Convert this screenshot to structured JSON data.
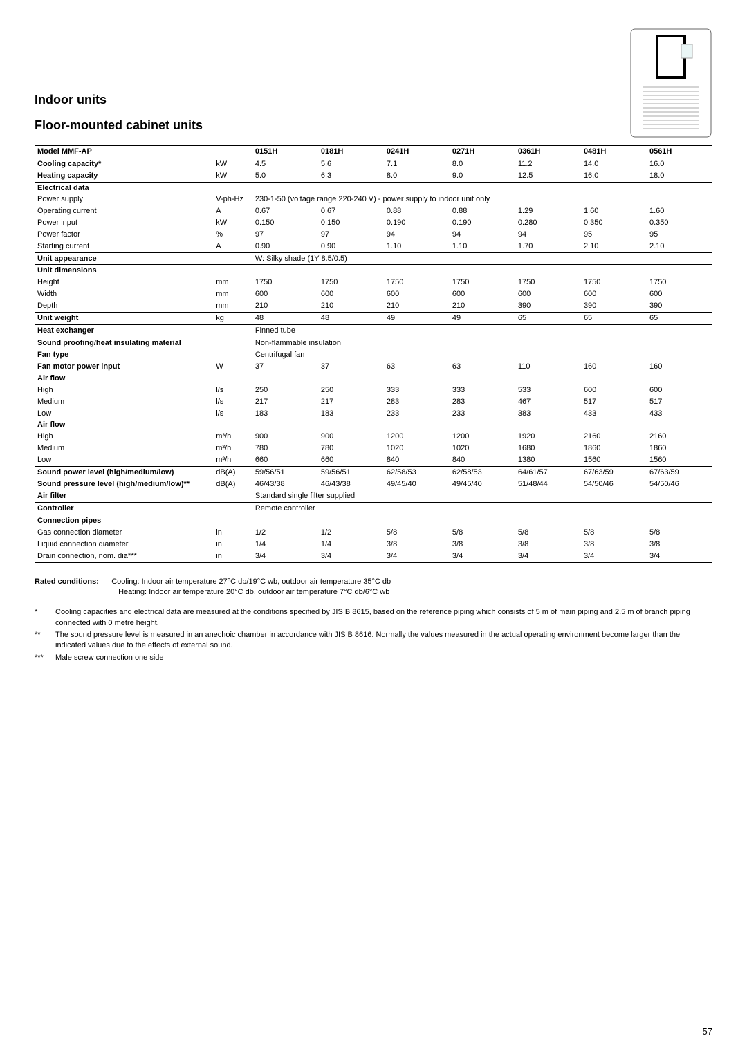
{
  "header": {
    "title1": "Indoor units",
    "title2": "Floor-mounted cabinet units"
  },
  "table_header": {
    "model_label": "Model  MMF-AP",
    "cols": [
      "0151H",
      "0181H",
      "0241H",
      "0271H",
      "0361H",
      "0481H",
      "0561H"
    ]
  },
  "rows": [
    {
      "label": "Cooling capacity*",
      "unit": "kW",
      "vals": [
        "4.5",
        "5.6",
        "7.1",
        "8.0",
        "11.2",
        "14.0",
        "16.0"
      ],
      "bold": true,
      "sep": false
    },
    {
      "label": "Heating capacity",
      "unit": "kW",
      "vals": [
        "5.0",
        "6.3",
        "8.0",
        "9.0",
        "12.5",
        "16.0",
        "18.0"
      ],
      "bold": true,
      "sep": false
    },
    {
      "label": "Electrical data",
      "span": true,
      "bold": true,
      "sep": true
    },
    {
      "label": "Power supply",
      "unit": "V-ph-Hz",
      "span_text": "230-1-50 (voltage range 220-240 V) - power supply to indoor unit only"
    },
    {
      "label": "Operating current",
      "unit": "A",
      "vals": [
        "0.67",
        "0.67",
        "0.88",
        "0.88",
        "1.29",
        "1.60",
        "1.60"
      ]
    },
    {
      "label": "Power input",
      "unit": "kW",
      "vals": [
        "0.150",
        "0.150",
        "0.190",
        "0.190",
        "0.280",
        "0.350",
        "0.350"
      ]
    },
    {
      "label": "Power factor",
      "unit": "%",
      "vals": [
        "97",
        "97",
        "94",
        "94",
        "94",
        "95",
        "95"
      ]
    },
    {
      "label": "Starting current",
      "unit": "A",
      "vals": [
        "0.90",
        "0.90",
        "1.10",
        "1.10",
        "1.70",
        "2.10",
        "2.10"
      ]
    },
    {
      "label": "Unit appearance",
      "span_text": "W: Silky shade (1Y 8.5/0.5)",
      "bold": true,
      "sep": true
    },
    {
      "label": "Unit dimensions",
      "span": true,
      "bold": true,
      "sep": true
    },
    {
      "label": "Height",
      "unit": "mm",
      "vals": [
        "1750",
        "1750",
        "1750",
        "1750",
        "1750",
        "1750",
        "1750"
      ]
    },
    {
      "label": "Width",
      "unit": "mm",
      "vals": [
        "600",
        "600",
        "600",
        "600",
        "600",
        "600",
        "600"
      ]
    },
    {
      "label": "Depth",
      "unit": "mm",
      "vals": [
        "210",
        "210",
        "210",
        "210",
        "390",
        "390",
        "390"
      ]
    },
    {
      "label": "Unit weight",
      "unit": "kg",
      "vals": [
        "48",
        "48",
        "49",
        "49",
        "65",
        "65",
        "65"
      ],
      "bold": true,
      "sep": true
    },
    {
      "label": "Heat exchanger",
      "span_text": "Finned tube",
      "bold": true,
      "sep": true
    },
    {
      "label": "Sound proofing/heat insulating material",
      "span_text": "Non-flammable insulation",
      "bold": true,
      "sep": true
    },
    {
      "label": "Fan type",
      "span_text": "Centrifugal fan",
      "bold": true,
      "sep": true
    },
    {
      "label": "Fan motor power input",
      "unit": "W",
      "vals": [
        "37",
        "37",
        "63",
        "63",
        "110",
        "160",
        "160"
      ],
      "bold": true
    },
    {
      "label": "Air flow",
      "span": true,
      "bold": true
    },
    {
      "label": "High",
      "unit": "l/s",
      "vals": [
        "250",
        "250",
        "333",
        "333",
        "533",
        "600",
        "600"
      ]
    },
    {
      "label": "Medium",
      "unit": "l/s",
      "vals": [
        "217",
        "217",
        "283",
        "283",
        "467",
        "517",
        "517"
      ]
    },
    {
      "label": "Low",
      "unit": "l/s",
      "vals": [
        "183",
        "183",
        "233",
        "233",
        "383",
        "433",
        "433"
      ]
    },
    {
      "label": "Air flow",
      "span": true,
      "bold": true
    },
    {
      "label": "High",
      "unit": "m³/h",
      "vals": [
        "900",
        "900",
        "1200",
        "1200",
        "1920",
        "2160",
        "2160"
      ]
    },
    {
      "label": "Medium",
      "unit": "m³/h",
      "vals": [
        "780",
        "780",
        "1020",
        "1020",
        "1680",
        "1860",
        "1860"
      ]
    },
    {
      "label": "Low",
      "unit": "m³/h",
      "vals": [
        "660",
        "660",
        "840",
        "840",
        "1380",
        "1560",
        "1560"
      ]
    },
    {
      "label": "Sound power level (high/medium/low)",
      "unit": "dB(A)",
      "vals": [
        "59/56/51",
        "59/56/51",
        "62/58/53",
        "62/58/53",
        "64/61/57",
        "67/63/59",
        "67/63/59"
      ],
      "bold": true,
      "sep": true
    },
    {
      "label": "Sound pressure level  (high/medium/low)**",
      "unit": "dB(A)",
      "vals": [
        "46/43/38",
        "46/43/38",
        "49/45/40",
        "49/45/40",
        "51/48/44",
        "54/50/46",
        "54/50/46"
      ],
      "bold": true
    },
    {
      "label": "Air filter",
      "span_text": "Standard single filter supplied",
      "bold": true,
      "sep": true
    },
    {
      "label": "Controller",
      "span_text": "Remote controller",
      "bold": true,
      "sep": true
    },
    {
      "label": "Connection pipes",
      "span": true,
      "bold": true,
      "sep": true
    },
    {
      "label": "Gas connection diameter",
      "unit": "in",
      "vals": [
        "1/2",
        "1/2",
        "5/8",
        "5/8",
        "5/8",
        "5/8",
        "5/8"
      ]
    },
    {
      "label": "Liquid connection diameter",
      "unit": "in",
      "vals": [
        "1/4",
        "1/4",
        "3/8",
        "3/8",
        "3/8",
        "3/8",
        "3/8"
      ]
    },
    {
      "label": "Drain connection, nom. dia***",
      "unit": "in",
      "vals": [
        "3/4",
        "3/4",
        "3/4",
        "3/4",
        "3/4",
        "3/4",
        "3/4"
      ],
      "bottom": true
    }
  ],
  "notes": {
    "rated_label": "Rated conditions:",
    "rated_text1": "Cooling: Indoor air temperature 27°C db/19°C wb, outdoor air temperature 35°C db",
    "rated_text2": "Heating: Indoor air temperature 20°C db, outdoor air temperature 7°C db/6°C wb",
    "fn1_mark": "*",
    "fn1_text": "Cooling capacities and electrical data are measured at the conditions specified by JIS B 8615, based on the reference piping which consists of 5 m of main piping and 2.5 m of branch piping connected with 0 metre height.",
    "fn2_mark": "**",
    "fn2_text": "The sound pressure level is measured in an anechoic chamber in accordance with JIS B 8616. Normally the values measured in the actual operating environment become larger than the indicated values due to the effects of external sound.",
    "fn3_mark": "***",
    "fn3_text": "Male screw connection one side"
  },
  "page_number": "57",
  "colors": {
    "border": "#000000",
    "grey": "#a0a0a0",
    "lightgrey": "#e8e8e8"
  }
}
